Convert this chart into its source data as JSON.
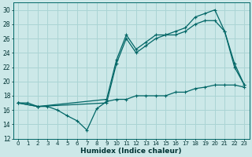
{
  "xlabel": "Humidex (Indice chaleur)",
  "bg_color": "#cce8e8",
  "grid_color": "#aad4d4",
  "line_color": "#006666",
  "ylim": [
    12,
    31
  ],
  "xlim": [
    -0.5,
    23.5
  ],
  "yticks": [
    12,
    14,
    16,
    18,
    20,
    22,
    24,
    26,
    28,
    30
  ],
  "xticks": [
    0,
    1,
    2,
    3,
    4,
    5,
    6,
    7,
    8,
    9,
    10,
    11,
    12,
    13,
    14,
    15,
    16,
    17,
    18,
    19,
    20,
    21,
    22,
    23
  ],
  "series1_x": [
    0,
    1,
    2,
    3,
    4,
    5,
    6,
    7,
    8,
    9,
    10,
    11,
    12,
    13,
    14,
    15,
    16,
    17,
    18,
    19,
    20,
    21,
    22,
    23
  ],
  "series1_y": [
    17,
    17,
    16.5,
    16.5,
    16,
    15.2,
    14.5,
    13.2,
    16.2,
    17.2,
    17.5,
    17.5,
    18,
    18,
    18,
    18,
    18.5,
    18.5,
    19,
    19.2,
    19.5,
    19.5,
    19.5,
    19.2
  ],
  "series2_x": [
    0,
    2,
    9,
    10,
    11,
    12,
    13,
    14,
    15,
    16,
    17,
    18,
    19,
    20,
    21,
    22,
    23
  ],
  "series2_y": [
    17,
    16.5,
    17,
    22.5,
    26,
    24,
    25,
    26,
    26.5,
    26.5,
    27,
    28,
    28.5,
    28.5,
    27,
    22.5,
    19.5
  ],
  "series3_x": [
    0,
    2,
    9,
    10,
    11,
    12,
    13,
    14,
    15,
    16,
    17,
    18,
    19,
    20,
    21,
    22,
    23
  ],
  "series3_y": [
    17,
    16.5,
    17.5,
    23,
    26.5,
    24.5,
    25.5,
    26.5,
    26.5,
    27,
    27.5,
    29,
    29.5,
    30,
    27,
    22,
    19.5
  ]
}
